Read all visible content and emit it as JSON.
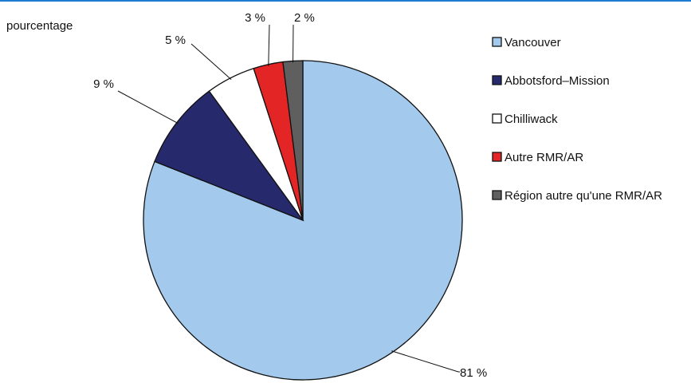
{
  "chart_data": {
    "type": "pie",
    "title": "",
    "unit_label": "pourcentage",
    "start_angle_deg": 0,
    "direction": "clockwise",
    "legend_position": "right",
    "slices": [
      {
        "label": "Vancouver",
        "value": 81,
        "display": "81 %",
        "color": "#a3c9ec"
      },
      {
        "label": "Abbotsford–Mission",
        "value": 9,
        "display": "9 %",
        "color": "#26296b"
      },
      {
        "label": "Chilliwack",
        "value": 5,
        "display": "5 %",
        "color": "#ffffff"
      },
      {
        "label": "Autre RMR/AR",
        "value": 3,
        "display": "3 %",
        "color": "#e32526"
      },
      {
        "label": "Région autre qu'une RMR/AR",
        "value": 2,
        "display": "2 %",
        "color": "#5f5f5f"
      }
    ]
  }
}
